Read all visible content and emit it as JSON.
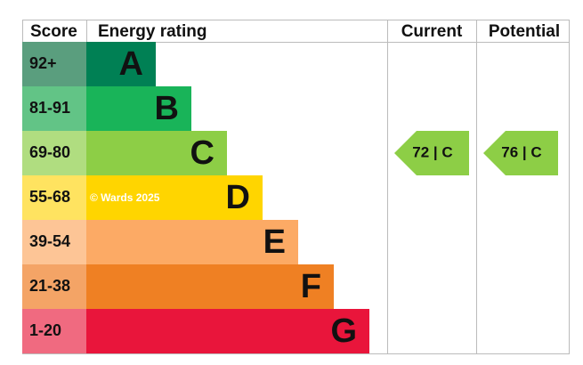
{
  "headers": [
    "Score",
    "Energy rating",
    "Current",
    "Potential"
  ],
  "bands": [
    {
      "score": "92+",
      "letter": "A",
      "color": "#008054",
      "score_color": "#5a9e7e"
    },
    {
      "score": "81-91",
      "letter": "B",
      "color": "#19b459",
      "score_color": "#62c486"
    },
    {
      "score": "69-80",
      "letter": "C",
      "color": "#8dce46",
      "score_color": "#b0dd80"
    },
    {
      "score": "55-68",
      "letter": "D",
      "color": "#ffd500",
      "score_color": "#ffe360"
    },
    {
      "score": "39-54",
      "letter": "E",
      "color": "#fcaa65",
      "score_color": "#fdc596"
    },
    {
      "score": "21-38",
      "letter": "F",
      "color": "#ef8023",
      "score_color": "#f4a466"
    },
    {
      "score": "1-20",
      "letter": "G",
      "color": "#e9153b",
      "score_color": "#f06a80"
    }
  ],
  "watermark": "© Wards 2025",
  "current": {
    "label": "72 | C",
    "color": "#8dce46"
  },
  "potential": {
    "label": "76 | C",
    "color": "#8dce46"
  }
}
